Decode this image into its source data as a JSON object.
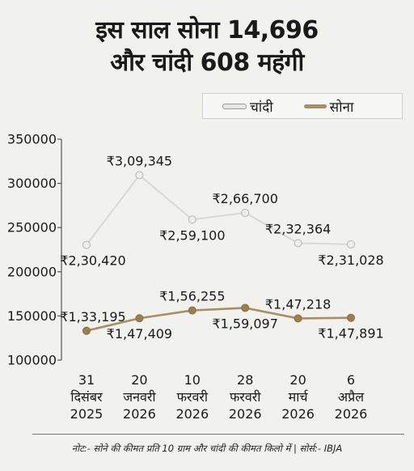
{
  "header": {
    "title_line1": "इस साल सोना 14,696",
    "title_line2": "और चांदी 608 महंगी"
  },
  "legend": {
    "silver": "चांदी",
    "gold": "सोना"
  },
  "note": "नोट:- सोने की कीमत प्रति 10 ग्राम और चांदी की कीमत किलो में | सोर्स:- IBJA",
  "colors": {
    "silver_line": "#d6d6d3",
    "silver_marker": "#eeeeec",
    "gold_line": "#a88f63",
    "gold_marker": "#9d8050",
    "axis": "#555555"
  },
  "chart_data": {
    "type": "line",
    "categories": [
      [
        "31",
        "दिसंबर",
        "2025"
      ],
      [
        "20",
        "जनवरी",
        "2026"
      ],
      [
        "10",
        "फरवरी",
        "2026"
      ],
      [
        "28",
        "फरवरी",
        "2026"
      ],
      [
        "20",
        "मार्च",
        "2026"
      ],
      [
        "6",
        "अप्रैल",
        "2026"
      ]
    ],
    "ylim": [
      100000,
      350000
    ],
    "yticks": [
      "350000",
      "300000",
      "250000",
      "200000",
      "150000",
      "100000"
    ],
    "series": [
      {
        "name": "चांदी",
        "values": [
          230420,
          309345,
          259100,
          266700,
          232364,
          231028
        ],
        "labels": [
          "₹2,30,420",
          "₹3,09,345",
          "₹2,59,100",
          "₹2,66,700",
          "₹2,32,364",
          "₹2,31,028"
        ]
      },
      {
        "name": "सोना",
        "values": [
          133195,
          147409,
          156255,
          159097,
          147218,
          147891
        ],
        "labels": [
          "₹1,33,195",
          "₹1,47,409",
          "₹1,56,255",
          "₹1,59,097",
          "₹1,47,218",
          "₹1,47,891"
        ]
      }
    ]
  }
}
